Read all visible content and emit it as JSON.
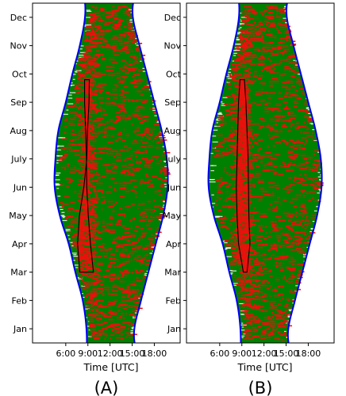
{
  "chart_data": [
    {
      "type": "scatter",
      "panel_label": "(A)",
      "xlabel": "Time [UTC]",
      "ylabel": "",
      "x_ticks": [
        "6:00",
        "9:00",
        "12:00",
        "15:00",
        "18:00"
      ],
      "x_tick_values": [
        6,
        9,
        12,
        15,
        18
      ],
      "y_ticks": [
        "Jan",
        "Feb",
        "Mar",
        "Apr",
        "May",
        "Jun",
        "July",
        "Aug",
        "Sep",
        "Oct",
        "Nov",
        "Dec"
      ],
      "xlim": [
        1.5,
        21.5
      ],
      "ylim": [
        0.5,
        12.5
      ],
      "grid": false,
      "colors": {
        "daylight_fill": "#008000",
        "events": "#e8120c",
        "boundary": "#0000ee",
        "region": "#000000"
      },
      "daylight_boundary": {
        "month": [
          1,
          2,
          3,
          4,
          5,
          6,
          7,
          8,
          9,
          10,
          11,
          12
        ],
        "sunrise_utc": [
          8.8,
          8.3,
          7.3,
          6.4,
          5.2,
          4.5,
          4.6,
          5.0,
          6.0,
          6.9,
          7.9,
          8.6
        ],
        "sunset_utc": [
          15.3,
          16.2,
          17.2,
          18.2,
          19.2,
          19.8,
          19.7,
          19.0,
          18.0,
          17.0,
          16.0,
          15.1
        ]
      },
      "region_polygon": {
        "month": [
          3.0,
          4.0,
          5.0,
          6.0,
          7.0,
          8.0,
          9.0,
          9.8,
          9.8,
          9.0,
          8.0,
          7.0,
          6.0,
          5.0,
          4.0,
          3.0
        ],
        "time_utc": [
          9.75,
          9.35,
          9.05,
          8.85,
          8.8,
          8.7,
          8.55,
          8.55,
          9.2,
          9.15,
          8.95,
          8.85,
          8.45,
          7.85,
          7.6,
          7.9
        ]
      }
    },
    {
      "type": "scatter",
      "panel_label": "(B)",
      "xlabel": "Time [UTC]",
      "ylabel": "",
      "x_ticks": [
        "6:00",
        "9:00",
        "12:00",
        "15:00",
        "18:00"
      ],
      "x_tick_values": [
        6,
        9,
        12,
        15,
        18
      ],
      "y_ticks": [
        "Jan",
        "Feb",
        "Mar",
        "Apr",
        "May",
        "Jun",
        "July",
        "Aug",
        "Sep",
        "Oct",
        "Nov",
        "Dec"
      ],
      "xlim": [
        1.5,
        21.5
      ],
      "ylim": [
        0.5,
        12.5
      ],
      "grid": false,
      "colors": {
        "daylight_fill": "#008000",
        "events": "#e8120c",
        "boundary": "#0000ee",
        "region": "#000000"
      },
      "daylight_boundary": {
        "month": [
          1,
          2,
          3,
          4,
          5,
          6,
          7,
          8,
          9,
          10,
          11,
          12
        ],
        "sunrise_utc": [
          8.8,
          8.3,
          7.3,
          6.4,
          5.2,
          4.5,
          4.6,
          5.0,
          6.0,
          6.9,
          7.9,
          8.6
        ],
        "sunset_utc": [
          15.3,
          16.2,
          17.2,
          18.2,
          19.2,
          19.8,
          19.7,
          19.0,
          18.0,
          17.0,
          16.0,
          15.1
        ]
      },
      "region_polygon": {
        "month": [
          3.0,
          4.0,
          5.0,
          6.0,
          7.0,
          8.0,
          9.0,
          9.8,
          9.8,
          9.0,
          8.0,
          7.0,
          6.0,
          5.0,
          4.0,
          3.0
        ],
        "time_utc": [
          9.7,
          10.1,
          9.95,
          9.9,
          9.85,
          9.7,
          9.55,
          9.35,
          8.75,
          8.55,
          8.45,
          8.35,
          8.25,
          8.35,
          8.55,
          9.2
        ]
      }
    }
  ]
}
